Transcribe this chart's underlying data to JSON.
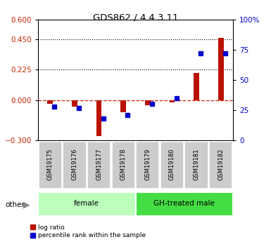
{
  "title": "GDS862 / 4.4.3.11",
  "samples": [
    "GSM19175",
    "GSM19176",
    "GSM19177",
    "GSM19178",
    "GSM19179",
    "GSM19180",
    "GSM19181",
    "GSM19182"
  ],
  "log_ratio": [
    -0.03,
    -0.05,
    -0.27,
    -0.09,
    -0.04,
    -0.02,
    0.2,
    0.46
  ],
  "percentile_rank": [
    28,
    27,
    18,
    21,
    30,
    35,
    72,
    72
  ],
  "groups": [
    {
      "label": "female",
      "start": 0,
      "end": 4,
      "color": "#bbffbb"
    },
    {
      "label": "GH-treated male",
      "start": 4,
      "end": 8,
      "color": "#44dd44"
    }
  ],
  "ylim_left": [
    -0.3,
    0.6
  ],
  "ylim_right": [
    0,
    100
  ],
  "yticks_left": [
    -0.3,
    0,
    0.225,
    0.45,
    0.6
  ],
  "yticks_right": [
    0,
    25,
    50,
    75,
    100
  ],
  "hline_dotted": [
    0.225,
    0.45
  ],
  "hline_zero_color": "#cc2200",
  "bar_color_red": "#bb1100",
  "bar_color_blue": "#0000cc",
  "bg_color": "#ffffff",
  "plot_bg": "#ffffff",
  "left_label_color": "#cc2200",
  "right_label_color": "#0000cc",
  "other_label": "other",
  "legend_red": "log ratio",
  "legend_blue": "percentile rank within the sample",
  "bar_width": 0.4
}
